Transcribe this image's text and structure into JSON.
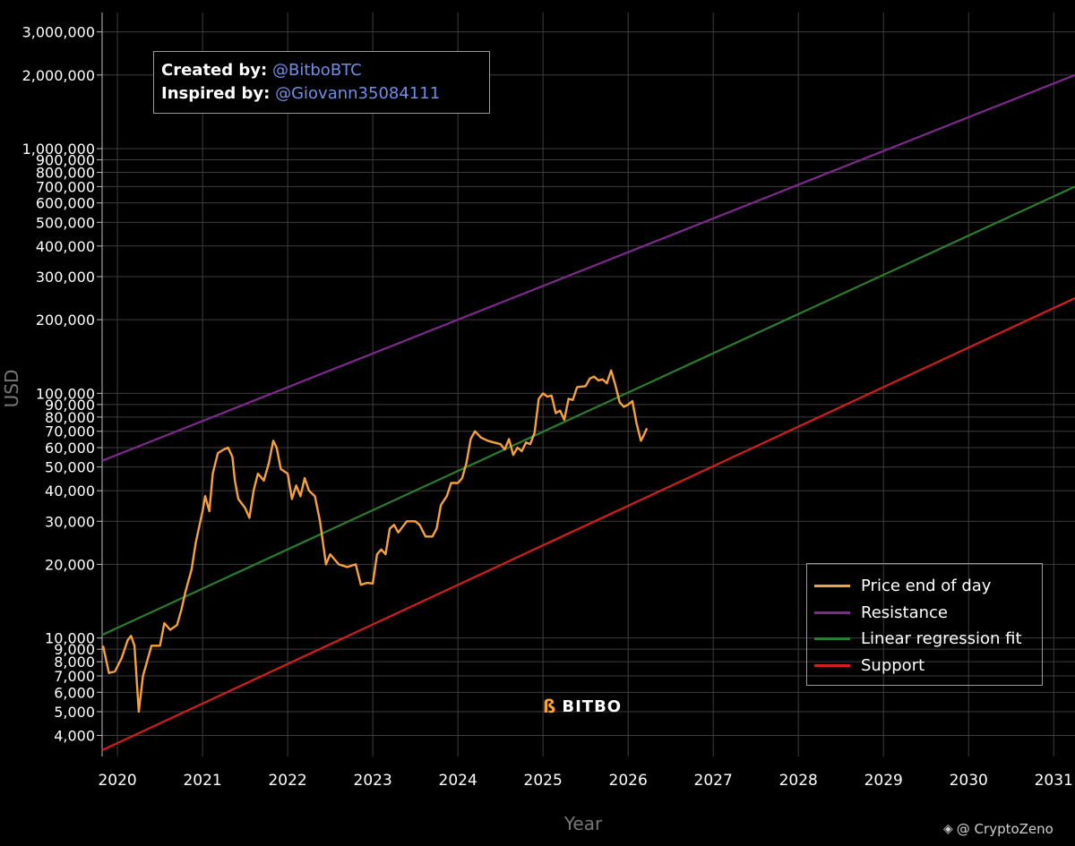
{
  "chart_data": {
    "type": "line",
    "y_scale": "log",
    "xlabel": "Year",
    "ylabel": "USD",
    "xlim": [
      2019.82,
      2031.25
    ],
    "ylim": [
      3280,
      3600000
    ],
    "x_ticks": [
      2020,
      2021,
      2022,
      2023,
      2024,
      2025,
      2026,
      2027,
      2028,
      2029,
      2030,
      2031
    ],
    "x_tick_labels": [
      "2020",
      "2021",
      "2022",
      "2023",
      "2024",
      "2025",
      "2026",
      "2027",
      "2028",
      "2029",
      "2030",
      "2031"
    ],
    "y_ticks": [
      4000,
      5000,
      6000,
      7000,
      8000,
      9000,
      10000,
      20000,
      30000,
      40000,
      50000,
      60000,
      70000,
      80000,
      90000,
      100000,
      200000,
      300000,
      400000,
      500000,
      600000,
      700000,
      800000,
      900000,
      1000000,
      2000000,
      3000000
    ],
    "y_tick_labels": [
      "4,000",
      "5,000",
      "6,000",
      "7,000",
      "8,000",
      "9,000",
      "10,000",
      "20,000",
      "30,000",
      "40,000",
      "50,000",
      "60,000",
      "70,000",
      "80,000",
      "90,000",
      "100,000",
      "200,000",
      "300,000",
      "400,000",
      "500,000",
      "600,000",
      "700,000",
      "800,000",
      "900,000",
      "1,000,000",
      "2,000,000",
      "3,000,000"
    ],
    "grid": true,
    "legend_position": "bottom-right",
    "series": [
      {
        "name": "Price end of day",
        "color": "#f7a13c",
        "x": [
          2019.83,
          2019.9,
          2019.97,
          2020.05,
          2020.12,
          2020.16,
          2020.2,
          2020.25,
          2020.3,
          2020.4,
          2020.5,
          2020.55,
          2020.62,
          2020.7,
          2020.75,
          2020.8,
          2020.87,
          2020.92,
          2021.0,
          2021.03,
          2021.08,
          2021.12,
          2021.18,
          2021.25,
          2021.3,
          2021.35,
          2021.38,
          2021.42,
          2021.5,
          2021.55,
          2021.6,
          2021.65,
          2021.72,
          2021.78,
          2021.83,
          2021.87,
          2021.92,
          2022.0,
          2022.05,
          2022.1,
          2022.15,
          2022.2,
          2022.25,
          2022.32,
          2022.38,
          2022.45,
          2022.5,
          2022.6,
          2022.7,
          2022.8,
          2022.86,
          2022.93,
          2023.0,
          2023.05,
          2023.1,
          2023.15,
          2023.2,
          2023.25,
          2023.3,
          2023.4,
          2023.5,
          2023.55,
          2023.62,
          2023.7,
          2023.75,
          2023.8,
          2023.87,
          2023.92,
          2024.0,
          2024.05,
          2024.1,
          2024.15,
          2024.2,
          2024.27,
          2024.35,
          2024.42,
          2024.5,
          2024.55,
          2024.6,
          2024.65,
          2024.7,
          2024.75,
          2024.8,
          2024.85,
          2024.9,
          2024.95,
          2025.0,
          2025.05,
          2025.1,
          2025.15,
          2025.2,
          2025.25,
          2025.3,
          2025.35,
          2025.4,
          2025.5,
          2025.55,
          2025.6,
          2025.65,
          2025.7,
          2025.75,
          2025.8,
          2025.85,
          2025.9,
          2025.95,
          2026.0,
          2026.05,
          2026.1,
          2026.15,
          2026.18,
          2026.22
        ],
        "values": [
          9300,
          7200,
          7300,
          8300,
          9800,
          10200,
          9300,
          5000,
          7000,
          9300,
          9300,
          11500,
          10800,
          11300,
          13000,
          15500,
          19000,
          24500,
          33000,
          38000,
          33000,
          47000,
          57000,
          59000,
          60000,
          55000,
          44000,
          37000,
          34000,
          31000,
          40000,
          47000,
          44000,
          52000,
          64000,
          60000,
          49000,
          47000,
          37000,
          42000,
          38000,
          45000,
          40000,
          38000,
          30000,
          20000,
          22000,
          20000,
          19500,
          20000,
          16500,
          16800,
          16700,
          22000,
          23000,
          22000,
          28000,
          29000,
          27000,
          30000,
          30000,
          29000,
          26000,
          26000,
          28000,
          35000,
          38000,
          43000,
          43000,
          45000,
          52000,
          65000,
          70000,
          66000,
          64000,
          63000,
          62000,
          59000,
          65000,
          56000,
          60000,
          58000,
          63000,
          62000,
          69000,
          95000,
          100000,
          97000,
          98000,
          83000,
          85000,
          78000,
          95000,
          94000,
          106000,
          107000,
          115000,
          117000,
          113000,
          114000,
          110000,
          124000,
          108000,
          92000,
          88000,
          90000,
          93000,
          75000,
          64000,
          67000,
          72000
        ]
      },
      {
        "name": "Resistance",
        "color": "#7d2a8c",
        "x": [
          2019.82,
          2031.25
        ],
        "values": [
          53000,
          2000000
        ]
      },
      {
        "name": "Linear regression fit",
        "color": "#2a7d2f",
        "x": [
          2019.82,
          2031.25
        ],
        "values": [
          10300,
          700000
        ]
      },
      {
        "name": "Support",
        "color": "#d41e1e",
        "x": [
          2019.82,
          2031.25
        ],
        "values": [
          3480,
          245000
        ]
      }
    ]
  },
  "credits": {
    "created_label": "Created by:",
    "created_handle": "@BitboBTC",
    "inspired_label": "Inspired by:",
    "inspired_handle": "@Giovann35084111"
  },
  "legend": {
    "items": [
      {
        "label": "Price end of day",
        "color": "#f7a13c"
      },
      {
        "label": "Resistance",
        "color": "#7d2a8c"
      },
      {
        "label": "Linear regression fit",
        "color": "#2a7d2f"
      },
      {
        "label": "Support",
        "color": "#d41e1e"
      }
    ]
  },
  "logo": {
    "text": "BITBO",
    "icon": "bitbo-logo-icon"
  },
  "watermark": {
    "text": "@ CryptoZeno",
    "icon": "binance-diamond-icon"
  }
}
